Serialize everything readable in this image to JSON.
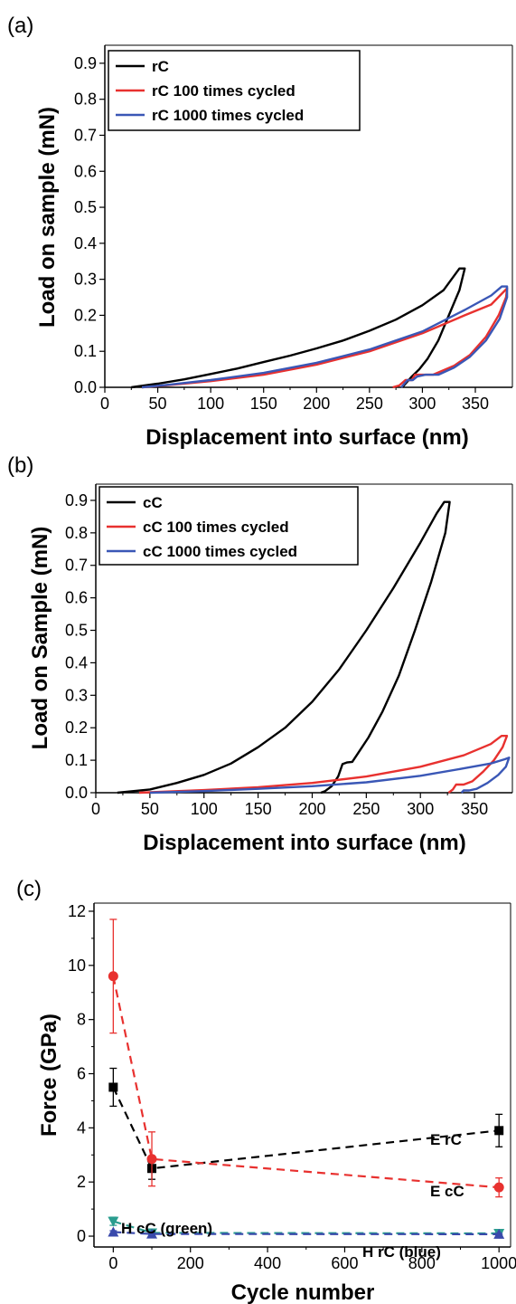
{
  "colors": {
    "black": "#000000",
    "red": "#e8312f",
    "blue": "#3a57b6",
    "green": "#2a9d8f",
    "navy": "#3949ab"
  },
  "chart_data": [
    {
      "panel_label": "(a)",
      "type": "line",
      "xlabel": "Displacement into surface (nm)",
      "ylabel": "Load on sample (mN)",
      "xlim": [
        0,
        385
      ],
      "ylim": [
        0,
        0.95
      ],
      "xticks": [
        0,
        50,
        100,
        150,
        200,
        250,
        300,
        350
      ],
      "yticks": [
        "0.0",
        "0.1",
        "0.2",
        "0.3",
        "0.4",
        "0.5",
        "0.6",
        "0.7",
        "0.8",
        "0.9"
      ],
      "legend_position": "top-left",
      "series": [
        {
          "name": "rC",
          "color": "#000000",
          "points": [
            [
              25,
              0
            ],
            [
              50,
              0.01
            ],
            [
              75,
              0.022
            ],
            [
              100,
              0.037
            ],
            [
              125,
              0.052
            ],
            [
              150,
              0.07
            ],
            [
              175,
              0.088
            ],
            [
              200,
              0.108
            ],
            [
              225,
              0.13
            ],
            [
              250,
              0.157
            ],
            [
              275,
              0.188
            ],
            [
              300,
              0.228
            ],
            [
              320,
              0.27
            ],
            [
              335,
              0.33
            ],
            [
              340,
              0.33
            ],
            [
              335,
              0.27
            ],
            [
              325,
              0.2
            ],
            [
              315,
              0.13
            ],
            [
              305,
              0.08
            ],
            [
              297,
              0.05
            ],
            [
              290,
              0.03
            ],
            [
              284,
              0.01
            ],
            [
              281,
              0
            ]
          ]
        },
        {
          "name": "rC 100 times cycled",
          "color": "#e8312f",
          "points": [
            [
              35,
              0
            ],
            [
              60,
              0.006
            ],
            [
              100,
              0.017
            ],
            [
              150,
              0.035
            ],
            [
              200,
              0.063
            ],
            [
              250,
              0.1
            ],
            [
              300,
              0.15
            ],
            [
              340,
              0.2
            ],
            [
              365,
              0.23
            ],
            [
              375,
              0.26
            ],
            [
              380,
              0.275
            ],
            [
              379,
              0.25
            ],
            [
              372,
              0.2
            ],
            [
              360,
              0.14
            ],
            [
              345,
              0.09
            ],
            [
              330,
              0.06
            ],
            [
              310,
              0.035
            ],
            [
              300,
              0.035
            ],
            [
              293,
              0.035
            ],
            [
              290,
              0.02
            ],
            [
              284,
              0.02
            ],
            [
              278,
              0.005
            ],
            [
              272,
              0
            ]
          ]
        },
        {
          "name": "rC 1000 times cycled",
          "color": "#3a57b6",
          "points": [
            [
              35,
              0
            ],
            [
              60,
              0.007
            ],
            [
              100,
              0.02
            ],
            [
              150,
              0.04
            ],
            [
              200,
              0.068
            ],
            [
              250,
              0.105
            ],
            [
              300,
              0.155
            ],
            [
              340,
              0.215
            ],
            [
              365,
              0.255
            ],
            [
              375,
              0.28
            ],
            [
              380,
              0.28
            ],
            [
              380,
              0.25
            ],
            [
              373,
              0.19
            ],
            [
              360,
              0.13
            ],
            [
              345,
              0.085
            ],
            [
              330,
              0.055
            ],
            [
              315,
              0.035
            ],
            [
              303,
              0.035
            ],
            [
              295,
              0.03
            ],
            [
              291,
              0.02
            ],
            [
              286,
              0.02
            ],
            [
              280,
              0
            ]
          ]
        }
      ]
    },
    {
      "panel_label": "(b)",
      "type": "line",
      "xlabel": "Displacement into surface (nm)",
      "ylabel": "Load on Sample (mN)",
      "xlim": [
        0,
        385
      ],
      "ylim": [
        0,
        0.95
      ],
      "xticks": [
        0,
        50,
        100,
        150,
        200,
        250,
        300,
        350
      ],
      "yticks": [
        "0.0",
        "0.1",
        "0.2",
        "0.3",
        "0.4",
        "0.5",
        "0.6",
        "0.7",
        "0.8",
        "0.9"
      ],
      "legend_position": "top-left",
      "series": [
        {
          "name": "cC",
          "color": "#000000",
          "points": [
            [
              20,
              0
            ],
            [
              50,
              0.01
            ],
            [
              75,
              0.03
            ],
            [
              100,
              0.055
            ],
            [
              125,
              0.09
            ],
            [
              150,
              0.14
            ],
            [
              175,
              0.2
            ],
            [
              200,
              0.28
            ],
            [
              225,
              0.38
            ],
            [
              250,
              0.5
            ],
            [
              275,
              0.63
            ],
            [
              300,
              0.77
            ],
            [
              315,
              0.86
            ],
            [
              322,
              0.895
            ],
            [
              327,
              0.895
            ],
            [
              323,
              0.8
            ],
            [
              310,
              0.65
            ],
            [
              295,
              0.5
            ],
            [
              280,
              0.36
            ],
            [
              265,
              0.25
            ],
            [
              252,
              0.17
            ],
            [
              242,
              0.12
            ],
            [
              237,
              0.095
            ],
            [
              232,
              0.093
            ],
            [
              228,
              0.088
            ],
            [
              224,
              0.05
            ],
            [
              218,
              0.02
            ],
            [
              212,
              0.005
            ],
            [
              208,
              0
            ]
          ]
        },
        {
          "name": "cC 100 times cycled",
          "color": "#e8312f",
          "points": [
            [
              40,
              0
            ],
            [
              100,
              0.008
            ],
            [
              150,
              0.017
            ],
            [
              200,
              0.03
            ],
            [
              250,
              0.05
            ],
            [
              300,
              0.08
            ],
            [
              340,
              0.115
            ],
            [
              365,
              0.15
            ],
            [
              375,
              0.175
            ],
            [
              380,
              0.175
            ],
            [
              376,
              0.14
            ],
            [
              368,
              0.1
            ],
            [
              358,
              0.065
            ],
            [
              348,
              0.035
            ],
            [
              340,
              0.025
            ],
            [
              333,
              0.025
            ],
            [
              330,
              0.01
            ],
            [
              326,
              0
            ]
          ]
        },
        {
          "name": "cC 1000 times cycled",
          "color": "#3a57b6",
          "points": [
            [
              50,
              0
            ],
            [
              100,
              0.005
            ],
            [
              150,
              0.012
            ],
            [
              200,
              0.02
            ],
            [
              250,
              0.032
            ],
            [
              300,
              0.052
            ],
            [
              340,
              0.075
            ],
            [
              365,
              0.09
            ],
            [
              378,
              0.103
            ],
            [
              382,
              0.108
            ],
            [
              379,
              0.08
            ],
            [
              372,
              0.055
            ],
            [
              362,
              0.03
            ],
            [
              352,
              0.012
            ],
            [
              345,
              0.007
            ],
            [
              340,
              0.007
            ],
            [
              338,
              0
            ]
          ]
        }
      ]
    },
    {
      "panel_label": "(c)",
      "type": "scatter",
      "xlabel": "Cycle number",
      "ylabel": "Force (GPa)",
      "xlim": [
        -50,
        1030
      ],
      "ylim": [
        -0.4,
        12.3
      ],
      "xticks": [
        0,
        200,
        400,
        600,
        800,
        1000
      ],
      "yticks": [
        0,
        2,
        4,
        6,
        8,
        10,
        12
      ],
      "series": [
        {
          "label": "E rC",
          "color": "#000000",
          "marker": "square",
          "x": [
            0,
            100,
            1000
          ],
          "y": [
            5.5,
            2.5,
            3.9
          ],
          "err": [
            0.7,
            0.4,
            0.6
          ]
        },
        {
          "label": "E cC",
          "color": "#e8312f",
          "marker": "circle",
          "x": [
            0,
            100,
            1000
          ],
          "y": [
            9.6,
            2.85,
            1.8
          ],
          "err": [
            2.1,
            1.0,
            0.35
          ]
        },
        {
          "label": "H cC (green)",
          "color": "#2a9d8f",
          "marker": "triangle-down",
          "x": [
            0,
            100,
            1000
          ],
          "y": [
            0.55,
            0.12,
            0.1
          ],
          "err": [
            0.15,
            0.05,
            0.05
          ]
        },
        {
          "label": "H rC (blue)",
          "color": "#3949ab",
          "marker": "triangle-up",
          "x": [
            0,
            100,
            1000
          ],
          "y": [
            0.15,
            0.08,
            0.07
          ],
          "err": [
            0.05,
            0.03,
            0.03
          ]
        }
      ],
      "annotations": [
        "E rC",
        "E cC",
        "H cC (green)",
        "H rC (blue)"
      ]
    }
  ]
}
